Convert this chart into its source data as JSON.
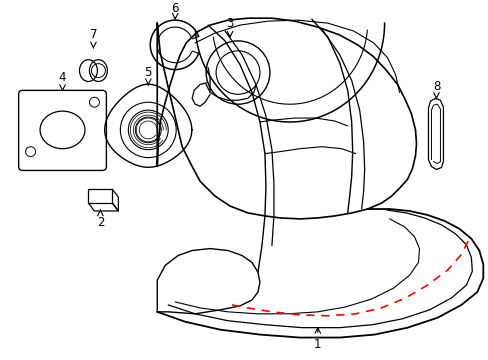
{
  "background_color": "#ffffff",
  "line_color": "#000000",
  "dashed_color": "#ff0000",
  "label_fontsize": 8.5,
  "figsize": [
    4.89,
    3.6
  ],
  "dpi": 100
}
